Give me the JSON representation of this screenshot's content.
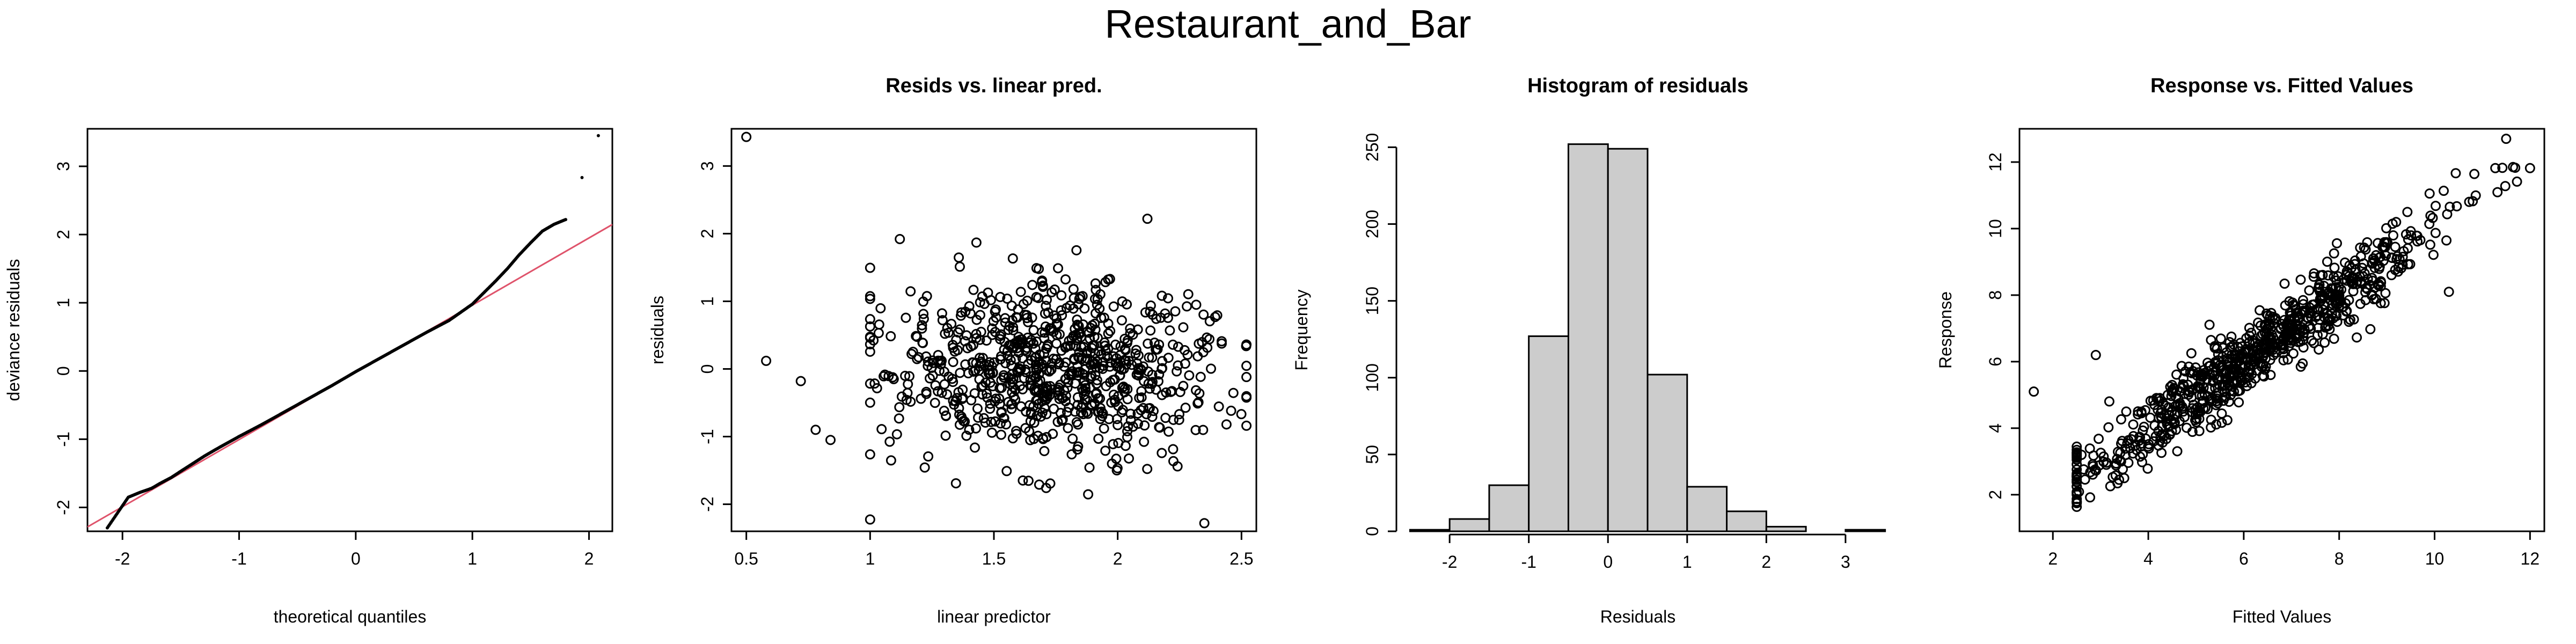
{
  "figure_title": "Restaurant_and_Bar",
  "chart_data": [
    {
      "type": "scatter",
      "subtype": "qq-plot",
      "title": "",
      "xlabel": "theoretical quantiles",
      "ylabel": "deviance residuals",
      "xlim": [
        -2.3,
        2.2
      ],
      "ylim": [
        -2.35,
        3.55
      ],
      "xticks": [
        -2,
        -1,
        0,
        1,
        2
      ],
      "yticks": [
        -2,
        -1,
        0,
        1,
        2,
        3
      ],
      "reference_line": {
        "slope": 0.985,
        "intercept": -0.02,
        "color": "#DF536B"
      },
      "sample_points": [
        [
          -2.13,
          -2.3
        ],
        [
          -1.95,
          -1.85
        ],
        [
          -1.85,
          -1.78
        ],
        [
          -1.75,
          -1.72
        ],
        [
          -1.68,
          -1.65
        ],
        [
          -1.58,
          -1.56
        ],
        [
          -1.5,
          -1.47
        ],
        [
          -1.4,
          -1.36
        ],
        [
          -1.3,
          -1.25
        ],
        [
          -1.2,
          -1.15
        ],
        [
          -1.0,
          -0.96
        ],
        [
          -0.8,
          -0.78
        ],
        [
          -0.6,
          -0.59
        ],
        [
          -0.4,
          -0.4
        ],
        [
          -0.2,
          -0.21
        ],
        [
          0.0,
          -0.01
        ],
        [
          0.2,
          0.18
        ],
        [
          0.4,
          0.37
        ],
        [
          0.6,
          0.56
        ],
        [
          0.8,
          0.74
        ],
        [
          1.0,
          0.98
        ],
        [
          1.1,
          1.15
        ],
        [
          1.2,
          1.32
        ],
        [
          1.3,
          1.5
        ],
        [
          1.4,
          1.7
        ],
        [
          1.5,
          1.88
        ],
        [
          1.6,
          2.05
        ],
        [
          1.7,
          2.15
        ],
        [
          1.8,
          2.22
        ],
        [
          2.08,
          3.45
        ]
      ],
      "point_color": "#000000"
    },
    {
      "type": "scatter",
      "title": "Resids vs. linear pred.",
      "xlabel": "linear predictor",
      "ylabel": "residuals",
      "xlim": [
        0.44,
        2.56
      ],
      "ylim": [
        -2.4,
        3.55
      ],
      "xticks": [
        0.5,
        1.0,
        1.5,
        2.0,
        2.5
      ],
      "yticks": [
        -2,
        -1,
        0,
        1,
        2,
        3
      ],
      "n_points": 800,
      "x_center": 1.75,
      "x_spread": 0.32,
      "resid_spread": 0.62,
      "outliers": [
        [
          0.5,
          3.43
        ],
        [
          0.58,
          0.12
        ],
        [
          0.72,
          -0.18
        ],
        [
          0.78,
          -0.9
        ],
        [
          0.84,
          -1.05
        ],
        [
          1.12,
          1.92
        ],
        [
          2.35,
          -2.28
        ],
        [
          2.12,
          2.22
        ]
      ],
      "marker": "open-circle"
    },
    {
      "type": "bar",
      "subtype": "histogram",
      "title": "Histogram of residuals",
      "xlabel": "Residuals",
      "ylabel": "Frequency",
      "bin_edges": [
        -2.5,
        -2.0,
        -1.5,
        -1.0,
        -0.5,
        0.0,
        0.5,
        1.0,
        1.5,
        2.0,
        2.5,
        3.0,
        3.5
      ],
      "values": [
        1,
        8,
        30,
        127,
        252,
        249,
        102,
        29,
        13,
        3,
        0,
        1
      ],
      "xlim": [
        -2.55,
        3.55
      ],
      "ylim": [
        0,
        262
      ],
      "xticks": [
        -2,
        -1,
        0,
        1,
        2,
        3
      ],
      "yticks": [
        0,
        50,
        100,
        150,
        200,
        250
      ],
      "bar_fill": "#CCCCCC"
    },
    {
      "type": "scatter",
      "title": "Response vs. Fitted Values",
      "xlabel": "Fitted Values",
      "ylabel": "Response",
      "xlim": [
        1.3,
        12.3
      ],
      "ylim": [
        0.9,
        13.0
      ],
      "xticks": [
        2,
        4,
        6,
        8,
        10,
        12
      ],
      "yticks": [
        2,
        4,
        6,
        8,
        10,
        12
      ],
      "n_points": 800,
      "x_center": 6.3,
      "x_spread": 2.0,
      "resid_spread": 0.55,
      "outliers": [
        [
          1.6,
          5.1
        ],
        [
          11.5,
          12.7
        ],
        [
          10.3,
          8.1
        ],
        [
          2.9,
          6.2
        ]
      ],
      "marker": "open-circle"
    }
  ]
}
